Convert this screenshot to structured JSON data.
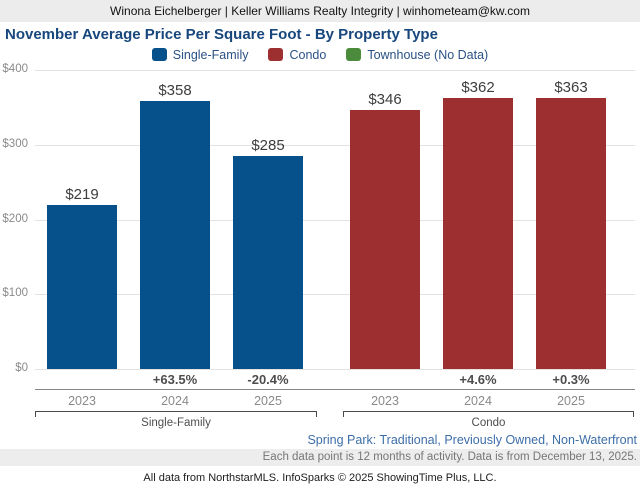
{
  "header": {
    "contact_line": "Winona Eichelberger | Keller Williams Realty Integrity | winhometeam@kw.com"
  },
  "title": "November Average Price Per Square Foot - By Property Type",
  "legend": {
    "items": [
      {
        "label": "Single-Family",
        "color": "#06508c"
      },
      {
        "label": "Condo",
        "color": "#9e2f31"
      },
      {
        "label": "Townhouse (No Data)",
        "color": "#4a8c3c"
      }
    ]
  },
  "chart_data": {
    "type": "bar",
    "title": "November Average Price Per Square Foot - By Property Type",
    "ylim": [
      0,
      400
    ],
    "y_tick_labels": [
      "$400",
      "$300",
      "$200",
      "$100",
      "$0"
    ],
    "grid": true,
    "legend_position": "top",
    "categories": [
      "2023",
      "2024",
      "2025"
    ],
    "series": [
      {
        "name": "Single-Family",
        "color": "#06508c",
        "values": [
          219,
          358,
          285
        ],
        "bar_labels": [
          "$219",
          "$358",
          "$285"
        ],
        "pct_change": [
          "",
          "+63.5%",
          "-20.4%"
        ]
      },
      {
        "name": "Condo",
        "color": "#9e2f31",
        "values": [
          346,
          362,
          363
        ],
        "bar_labels": [
          "$346",
          "$362",
          "$363"
        ],
        "pct_change": [
          "",
          "+4.6%",
          "+0.3%"
        ]
      },
      {
        "name": "Townhouse",
        "color": "#4a8c3c",
        "values": [],
        "note": "No Data"
      }
    ]
  },
  "footer": {
    "filters_line": "Spring Park: Traditional, Previously Owned, Non-Waterfront",
    "note_line": "Each data point is 12 months of activity. Data is from December 13, 2025.",
    "attribution_line": "All data from NorthstarMLS. InfoSparks © 2025 ShowingTime Plus, LLC."
  }
}
